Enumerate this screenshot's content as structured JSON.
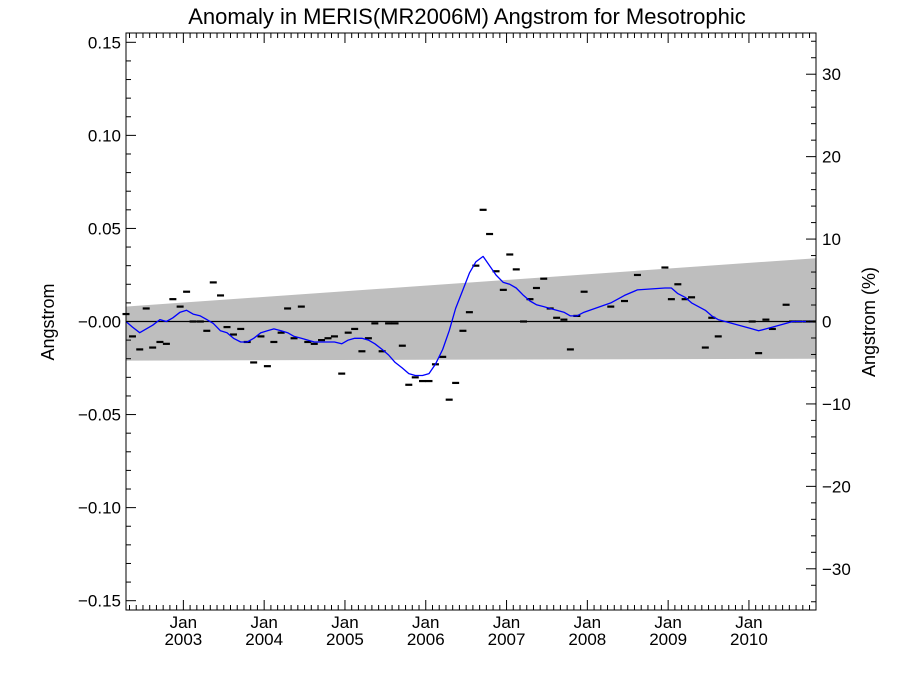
{
  "chart_data": {
    "type": "line",
    "title": "Anomaly in MERIS(MR2006M) Angstrom for Mesotrophic",
    "ylabel": "Angstrom",
    "y2label": "Angstrom (%)",
    "xlabel": "",
    "ylim": [
      -0.155,
      0.155
    ],
    "y2lim": [
      -35,
      35
    ],
    "xlim": [
      2002.29,
      2010.83
    ],
    "y_ticks": [
      {
        "value": 0.15,
        "label": "0.15"
      },
      {
        "value": 0.1,
        "label": "0.10"
      },
      {
        "value": 0.05,
        "label": "0.05"
      },
      {
        "value": 0.0,
        "label": "−0.00"
      },
      {
        "value": -0.05,
        "label": "−0.05"
      },
      {
        "value": -0.1,
        "label": "−0.10"
      },
      {
        "value": -0.15,
        "label": "−0.15"
      }
    ],
    "y2_ticks": [
      {
        "value": 30,
        "label": "30"
      },
      {
        "value": 20,
        "label": "20"
      },
      {
        "value": 10,
        "label": "10"
      },
      {
        "value": 0,
        "label": "0"
      },
      {
        "value": -10,
        "label": "−10"
      },
      {
        "value": -20,
        "label": "−20"
      },
      {
        "value": -30,
        "label": "−30"
      }
    ],
    "x_ticks": [
      {
        "value": 2003.0,
        "month": "Jan",
        "year": "2003"
      },
      {
        "value": 2004.0,
        "month": "Jan",
        "year": "2004"
      },
      {
        "value": 2005.0,
        "month": "Jan",
        "year": "2005"
      },
      {
        "value": 2006.0,
        "month": "Jan",
        "year": "2006"
      },
      {
        "value": 2007.0,
        "month": "Jan",
        "year": "2007"
      },
      {
        "value": 2008.0,
        "month": "Jan",
        "year": "2008"
      },
      {
        "value": 2009.0,
        "month": "Jan",
        "year": "2009"
      },
      {
        "value": 2010.0,
        "month": "Jan",
        "year": "2010"
      }
    ],
    "band": {
      "start": {
        "x": 2002.29,
        "upper": 0.008,
        "lower": -0.021
      },
      "end": {
        "x": 2010.83,
        "upper": 0.034,
        "lower": -0.02
      },
      "color": "#bebebe"
    },
    "zero_line": 0.0,
    "series": [
      {
        "kind": "monthly",
        "color": "#000000",
        "x": [
          2002.29,
          2002.37,
          2002.46,
          2002.54,
          2002.62,
          2002.71,
          2002.79,
          2002.87,
          2002.96,
          2003.04,
          2003.12,
          2003.21,
          2003.29,
          2003.37,
          2003.46,
          2003.54,
          2003.62,
          2003.71,
          2003.79,
          2003.87,
          2003.96,
          2004.04,
          2004.12,
          2004.21,
          2004.29,
          2004.37,
          2004.46,
          2004.54,
          2004.62,
          2004.71,
          2004.79,
          2004.87,
          2004.96,
          2005.04,
          2005.12,
          2005.21,
          2005.29,
          2005.37,
          2005.46,
          2005.54,
          2005.62,
          2005.71,
          2005.79,
          2005.87,
          2005.96,
          2006.04,
          2006.12,
          2006.21,
          2006.29,
          2006.37,
          2006.46,
          2006.54,
          2006.62,
          2006.71,
          2006.79,
          2006.87,
          2006.96,
          2007.04,
          2007.12,
          2007.21,
          2007.29,
          2007.37,
          2007.46,
          2007.54,
          2007.62,
          2007.71,
          2007.79,
          2007.87,
          2007.96,
          2008.29,
          2008.46,
          2008.62,
          2008.96,
          2009.04,
          2009.12,
          2009.21,
          2009.29,
          2009.46,
          2009.54,
          2009.62,
          2010.04,
          2010.12,
          2010.21,
          2010.29,
          2010.46,
          2010.54,
          2010.62,
          2010.71,
          2010.79
        ],
        "values": [
          0.004,
          -0.008,
          -0.015,
          0.007,
          -0.014,
          -0.011,
          -0.012,
          0.012,
          0.008,
          0.016,
          0.0,
          0.0,
          -0.005,
          0.021,
          0.014,
          -0.003,
          -0.007,
          -0.004,
          -0.011,
          -0.022,
          -0.008,
          -0.024,
          -0.011,
          -0.006,
          0.007,
          -0.009,
          0.008,
          -0.011,
          -0.012,
          -0.01,
          -0.009,
          -0.008,
          -0.028,
          -0.006,
          -0.004,
          -0.016,
          -0.009,
          -0.001,
          -0.016,
          -0.001,
          -0.001,
          -0.013,
          -0.034,
          -0.03,
          -0.032,
          -0.032,
          -0.023,
          -0.019,
          -0.042,
          -0.033,
          -0.005,
          0.005,
          0.03,
          0.06,
          0.047,
          0.027,
          0.017,
          0.036,
          0.028,
          0.0,
          0.012,
          0.018,
          0.023,
          0.007,
          0.002,
          0.001,
          -0.015,
          0.003,
          0.016,
          0.008,
          0.011,
          0.025,
          0.029,
          0.012,
          0.02,
          0.012,
          0.013,
          -0.014,
          0.002,
          -0.008,
          0.0,
          -0.017,
          0.001,
          -0.004,
          0.009,
          0.0,
          0.0,
          0.0,
          0.0
        ]
      },
      {
        "kind": "smoothed",
        "color": "#0000ff",
        "x": [
          2002.29,
          2002.37,
          2002.46,
          2002.54,
          2002.62,
          2002.71,
          2002.79,
          2002.87,
          2002.96,
          2003.04,
          2003.12,
          2003.21,
          2003.29,
          2003.37,
          2003.46,
          2003.54,
          2003.62,
          2003.71,
          2003.79,
          2003.87,
          2003.96,
          2004.04,
          2004.12,
          2004.21,
          2004.29,
          2004.37,
          2004.46,
          2004.54,
          2004.62,
          2004.71,
          2004.79,
          2004.87,
          2004.96,
          2005.04,
          2005.12,
          2005.21,
          2005.29,
          2005.37,
          2005.46,
          2005.54,
          2005.62,
          2005.71,
          2005.79,
          2005.87,
          2005.96,
          2006.04,
          2006.12,
          2006.21,
          2006.29,
          2006.37,
          2006.46,
          2006.54,
          2006.62,
          2006.71,
          2006.79,
          2006.87,
          2006.96,
          2007.04,
          2007.12,
          2007.21,
          2007.29,
          2007.37,
          2007.46,
          2007.54,
          2007.62,
          2007.71,
          2007.79,
          2007.87,
          2007.96,
          2008.29,
          2008.46,
          2008.62,
          2008.96,
          2009.04,
          2009.12,
          2009.21,
          2009.29,
          2009.46,
          2009.54,
          2009.62,
          2010.04,
          2010.12,
          2010.21,
          2010.29,
          2010.46,
          2010.54,
          2010.62,
          2010.71,
          2010.79
        ],
        "values": [
          0.0,
          -0.003,
          -0.006,
          -0.004,
          -0.002,
          0.001,
          0.0,
          0.002,
          0.005,
          0.006,
          0.004,
          0.003,
          0.001,
          -0.001,
          -0.005,
          -0.006,
          -0.009,
          -0.011,
          -0.011,
          -0.009,
          -0.006,
          -0.005,
          -0.004,
          -0.005,
          -0.006,
          -0.008,
          -0.009,
          -0.01,
          -0.011,
          -0.011,
          -0.011,
          -0.011,
          -0.012,
          -0.01,
          -0.009,
          -0.009,
          -0.01,
          -0.012,
          -0.015,
          -0.018,
          -0.022,
          -0.025,
          -0.028,
          -0.029,
          -0.029,
          -0.028,
          -0.023,
          -0.015,
          -0.005,
          0.007,
          0.017,
          0.026,
          0.032,
          0.035,
          0.03,
          0.025,
          0.021,
          0.02,
          0.018,
          0.014,
          0.011,
          0.009,
          0.008,
          0.007,
          0.006,
          0.005,
          0.003,
          0.003,
          0.005,
          0.01,
          0.014,
          0.017,
          0.018,
          0.018,
          0.015,
          0.013,
          0.01,
          0.006,
          0.003,
          0.001,
          -0.004,
          -0.005,
          -0.004,
          -0.003,
          -0.001,
          0.0,
          0.0,
          0.0,
          0.0
        ]
      }
    ]
  }
}
